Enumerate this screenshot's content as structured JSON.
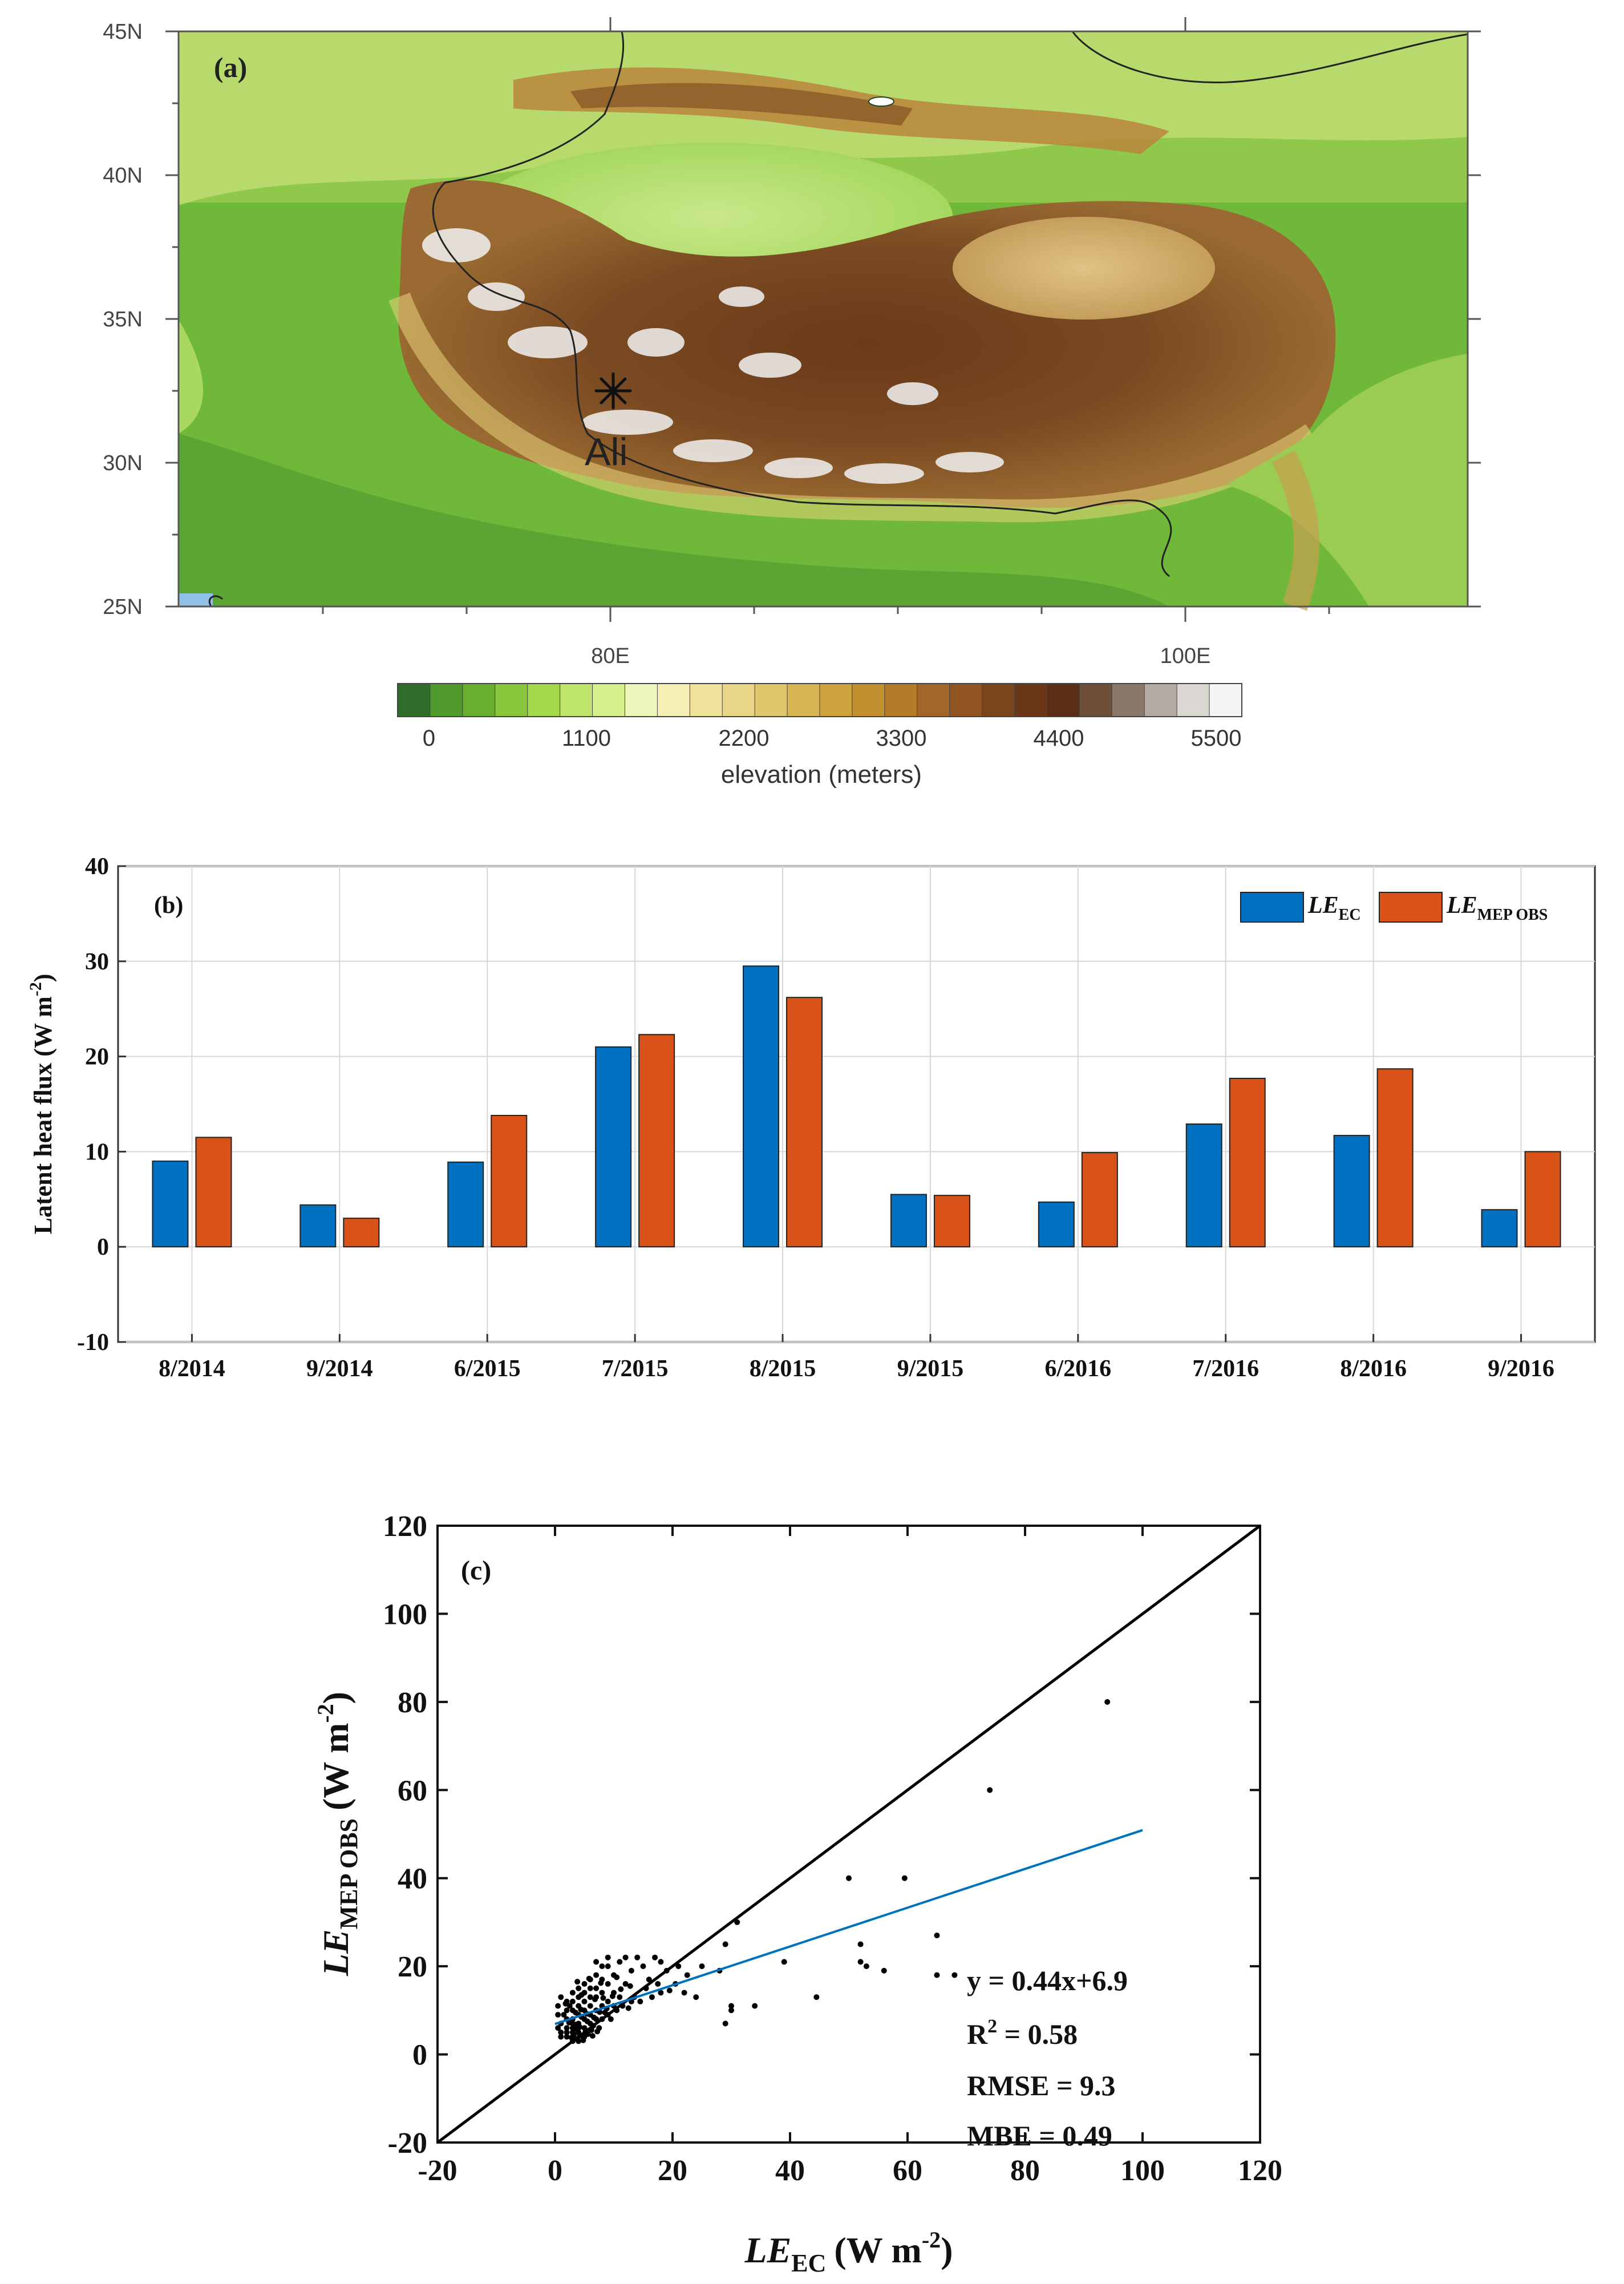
{
  "panel_a": {
    "label": "(a)",
    "lat_labels": [
      "45N",
      "40N",
      "35N",
      "30N",
      "25N"
    ],
    "lon_labels": [
      "80E",
      "100E"
    ],
    "site_label": "Ali",
    "colorbar_ticks": [
      "0",
      "1100",
      "2200",
      "3300",
      "4400",
      "5500"
    ],
    "colorbar_title": "elevation (meters)",
    "colorbar_colors": [
      "#2f6e2a",
      "#4f9a2a",
      "#6aae30",
      "#8ac63c",
      "#a3d84a",
      "#bfe46a",
      "#d6ee8c",
      "#ecf5ba",
      "#f4efb4",
      "#efe39c",
      "#e8d686",
      "#dfc66c",
      "#d6b552",
      "#cea23c",
      "#c2902e",
      "#b47c2a",
      "#a26728",
      "#905522",
      "#7c441c",
      "#6a3818",
      "#5a2e14",
      "#6e5038",
      "#8a7868",
      "#b4aaa2",
      "#dad6d2",
      "#f4f4f4"
    ]
  },
  "chart_data": [
    {
      "type": "bar",
      "panel_label": "(b)",
      "categories": [
        "8/2014",
        "9/2014",
        "6/2015",
        "7/2015",
        "8/2015",
        "9/2015",
        "6/2016",
        "7/2016",
        "8/2016",
        "9/2016"
      ],
      "series": [
        {
          "name": "LE_EC",
          "legend_main": "LE",
          "legend_sub": "EC",
          "color": "#0070c0",
          "values": [
            9.0,
            4.4,
            8.9,
            21.0,
            29.5,
            5.5,
            4.7,
            12.9,
            11.7,
            3.9
          ]
        },
        {
          "name": "LE_MEP OBS",
          "legend_main": "LE",
          "legend_sub": "MEP OBS",
          "color": "#d95319",
          "values": [
            11.5,
            3.0,
            13.8,
            22.3,
            26.2,
            5.4,
            9.9,
            17.7,
            18.7,
            10.0
          ]
        }
      ],
      "ylabel": "Latent heat flux (W m",
      "ylabel_sup": "-2",
      "ylabel_close": ")",
      "ylim": [
        -10,
        40
      ],
      "yticks": [
        "-10",
        "0",
        "10",
        "20",
        "30",
        "40"
      ],
      "grid": true,
      "legend_position": "top-right"
    },
    {
      "type": "scatter",
      "panel_label": "(c)",
      "xlim": [
        -20,
        120
      ],
      "ylim": [
        -20,
        120
      ],
      "xticks": [
        "-20",
        "0",
        "20",
        "40",
        "60",
        "80",
        "100",
        "120"
      ],
      "yticks": [
        "-20",
        "0",
        "20",
        "40",
        "60",
        "80",
        "100",
        "120"
      ],
      "xlabel": {
        "main": "LE",
        "sub": "EC",
        "unit": "(W m",
        "sup": "-2",
        "close": ")"
      },
      "ylabel": {
        "main": "LE",
        "sub": "MEP OBS",
        "unit": "(W m",
        "sup": "-2",
        "close": ")"
      },
      "one_to_one_line": {
        "x": [
          -20,
          120
        ],
        "y": [
          -20,
          120
        ],
        "color": "#000000"
      },
      "fit_line": {
        "slope": 0.44,
        "intercept": 6.9,
        "x_range": [
          0,
          100
        ],
        "color": "#0072bd"
      },
      "stats": {
        "equation": "y = 0.44x+6.9",
        "r2_prefix": "R",
        "r2_sup": "2",
        "r2_value": " = 0.58",
        "rmse": "RMSE = 9.3",
        "mbe": "MBE = 0.49"
      },
      "points": [
        [
          94,
          80
        ],
        [
          74,
          60
        ],
        [
          59.5,
          40
        ],
        [
          50,
          40
        ],
        [
          65,
          27
        ],
        [
          52,
          25
        ],
        [
          52,
          21
        ],
        [
          53,
          20
        ],
        [
          56,
          19
        ],
        [
          68,
          18
        ],
        [
          65,
          18
        ],
        [
          44.5,
          13
        ],
        [
          39,
          21
        ],
        [
          34,
          11
        ],
        [
          31,
          30
        ],
        [
          29,
          25
        ],
        [
          30,
          11
        ],
        [
          30,
          10
        ],
        [
          29,
          7
        ],
        [
          28,
          19
        ],
        [
          25,
          20
        ],
        [
          24,
          13
        ],
        [
          22,
          14
        ],
        [
          21,
          20
        ],
        [
          19,
          19
        ],
        [
          18,
          21
        ],
        [
          18,
          14
        ],
        [
          17,
          22
        ],
        [
          16,
          17
        ],
        [
          15,
          20
        ],
        [
          14,
          22
        ],
        [
          13,
          19
        ],
        [
          13,
          12
        ],
        [
          12,
          22
        ],
        [
          12,
          16
        ],
        [
          11,
          21
        ],
        [
          11,
          13
        ],
        [
          10,
          18
        ],
        [
          10,
          14
        ],
        [
          10,
          11
        ],
        [
          9,
          22
        ],
        [
          9,
          20
        ],
        [
          9,
          16
        ],
        [
          9,
          12
        ],
        [
          9,
          9
        ],
        [
          8,
          20
        ],
        [
          8,
          17
        ],
        [
          8,
          14
        ],
        [
          8,
          11
        ],
        [
          8,
          8
        ],
        [
          7,
          21
        ],
        [
          7,
          18
        ],
        [
          7,
          15
        ],
        [
          7,
          13
        ],
        [
          7,
          10
        ],
        [
          7,
          8
        ],
        [
          6,
          17
        ],
        [
          6,
          15
        ],
        [
          6,
          13
        ],
        [
          6,
          11
        ],
        [
          6,
          9
        ],
        [
          6,
          7
        ],
        [
          5,
          16
        ],
        [
          5,
          14
        ],
        [
          5,
          12
        ],
        [
          5,
          10
        ],
        [
          5,
          8
        ],
        [
          5,
          6
        ],
        [
          5,
          4
        ],
        [
          4,
          15
        ],
        [
          4,
          13
        ],
        [
          4,
          11
        ],
        [
          4,
          9
        ],
        [
          4,
          7
        ],
        [
          4,
          5
        ],
        [
          4,
          3
        ],
        [
          3,
          12
        ],
        [
          3,
          10
        ],
        [
          3,
          8
        ],
        [
          3,
          7
        ],
        [
          3,
          6
        ],
        [
          3,
          5
        ],
        [
          3,
          4
        ],
        [
          3,
          3
        ],
        [
          2,
          10
        ],
        [
          2,
          8
        ],
        [
          2,
          6
        ],
        [
          2,
          5
        ],
        [
          2,
          4
        ],
        [
          1,
          7
        ],
        [
          1,
          5
        ],
        [
          1,
          4
        ],
        [
          0.5,
          6
        ],
        [
          0.5,
          9
        ],
        [
          0.5,
          11
        ],
        [
          1.5,
          9
        ],
        [
          2.5,
          11
        ],
        [
          3.5,
          9.5
        ],
        [
          4.5,
          8.5
        ],
        [
          5.5,
          7.5
        ],
        [
          6.5,
          6.5
        ],
        [
          3.2,
          4.5
        ],
        [
          3.8,
          3.5
        ],
        [
          4.2,
          4.2
        ],
        [
          2.8,
          3.8
        ],
        [
          4.8,
          3.2
        ],
        [
          5.2,
          5.2
        ],
        [
          3.5,
          5.8
        ],
        [
          6.2,
          5.5
        ],
        [
          7.5,
          6
        ],
        [
          8.5,
          9.5
        ],
        [
          9.5,
          8
        ],
        [
          10.5,
          10
        ],
        [
          11.5,
          11
        ],
        [
          12.5,
          10.5
        ],
        [
          13.5,
          13
        ],
        [
          14.5,
          12
        ],
        [
          15.5,
          15
        ],
        [
          16.5,
          13
        ],
        [
          17.5,
          16
        ],
        [
          19.5,
          14.5
        ],
        [
          20.5,
          16
        ],
        [
          22.5,
          18
        ],
        [
          2,
          12
        ],
        [
          1,
          13
        ],
        [
          3,
          14
        ],
        [
          4.5,
          13.5
        ],
        [
          6.8,
          12.5
        ],
        [
          8.2,
          12.8
        ],
        [
          9.8,
          13.2
        ],
        [
          11.2,
          14.8
        ],
        [
          12.8,
          15.5
        ],
        [
          10.5,
          17.5
        ],
        [
          7.8,
          16.2
        ],
        [
          5.8,
          17.2
        ],
        [
          3.8,
          16.5
        ],
        [
          1.8,
          11.5
        ],
        [
          4.2,
          6.2
        ],
        [
          5.6,
          4.6
        ],
        [
          6.4,
          4.2
        ],
        [
          7.2,
          5.2
        ],
        [
          2.4,
          7.2
        ],
        [
          3.6,
          6.8
        ],
        [
          4.4,
          10.2
        ],
        [
          5.4,
          9.2
        ],
        [
          6.6,
          8.4
        ],
        [
          7.6,
          9.6
        ],
        [
          8.8,
          10.4
        ]
      ]
    }
  ]
}
